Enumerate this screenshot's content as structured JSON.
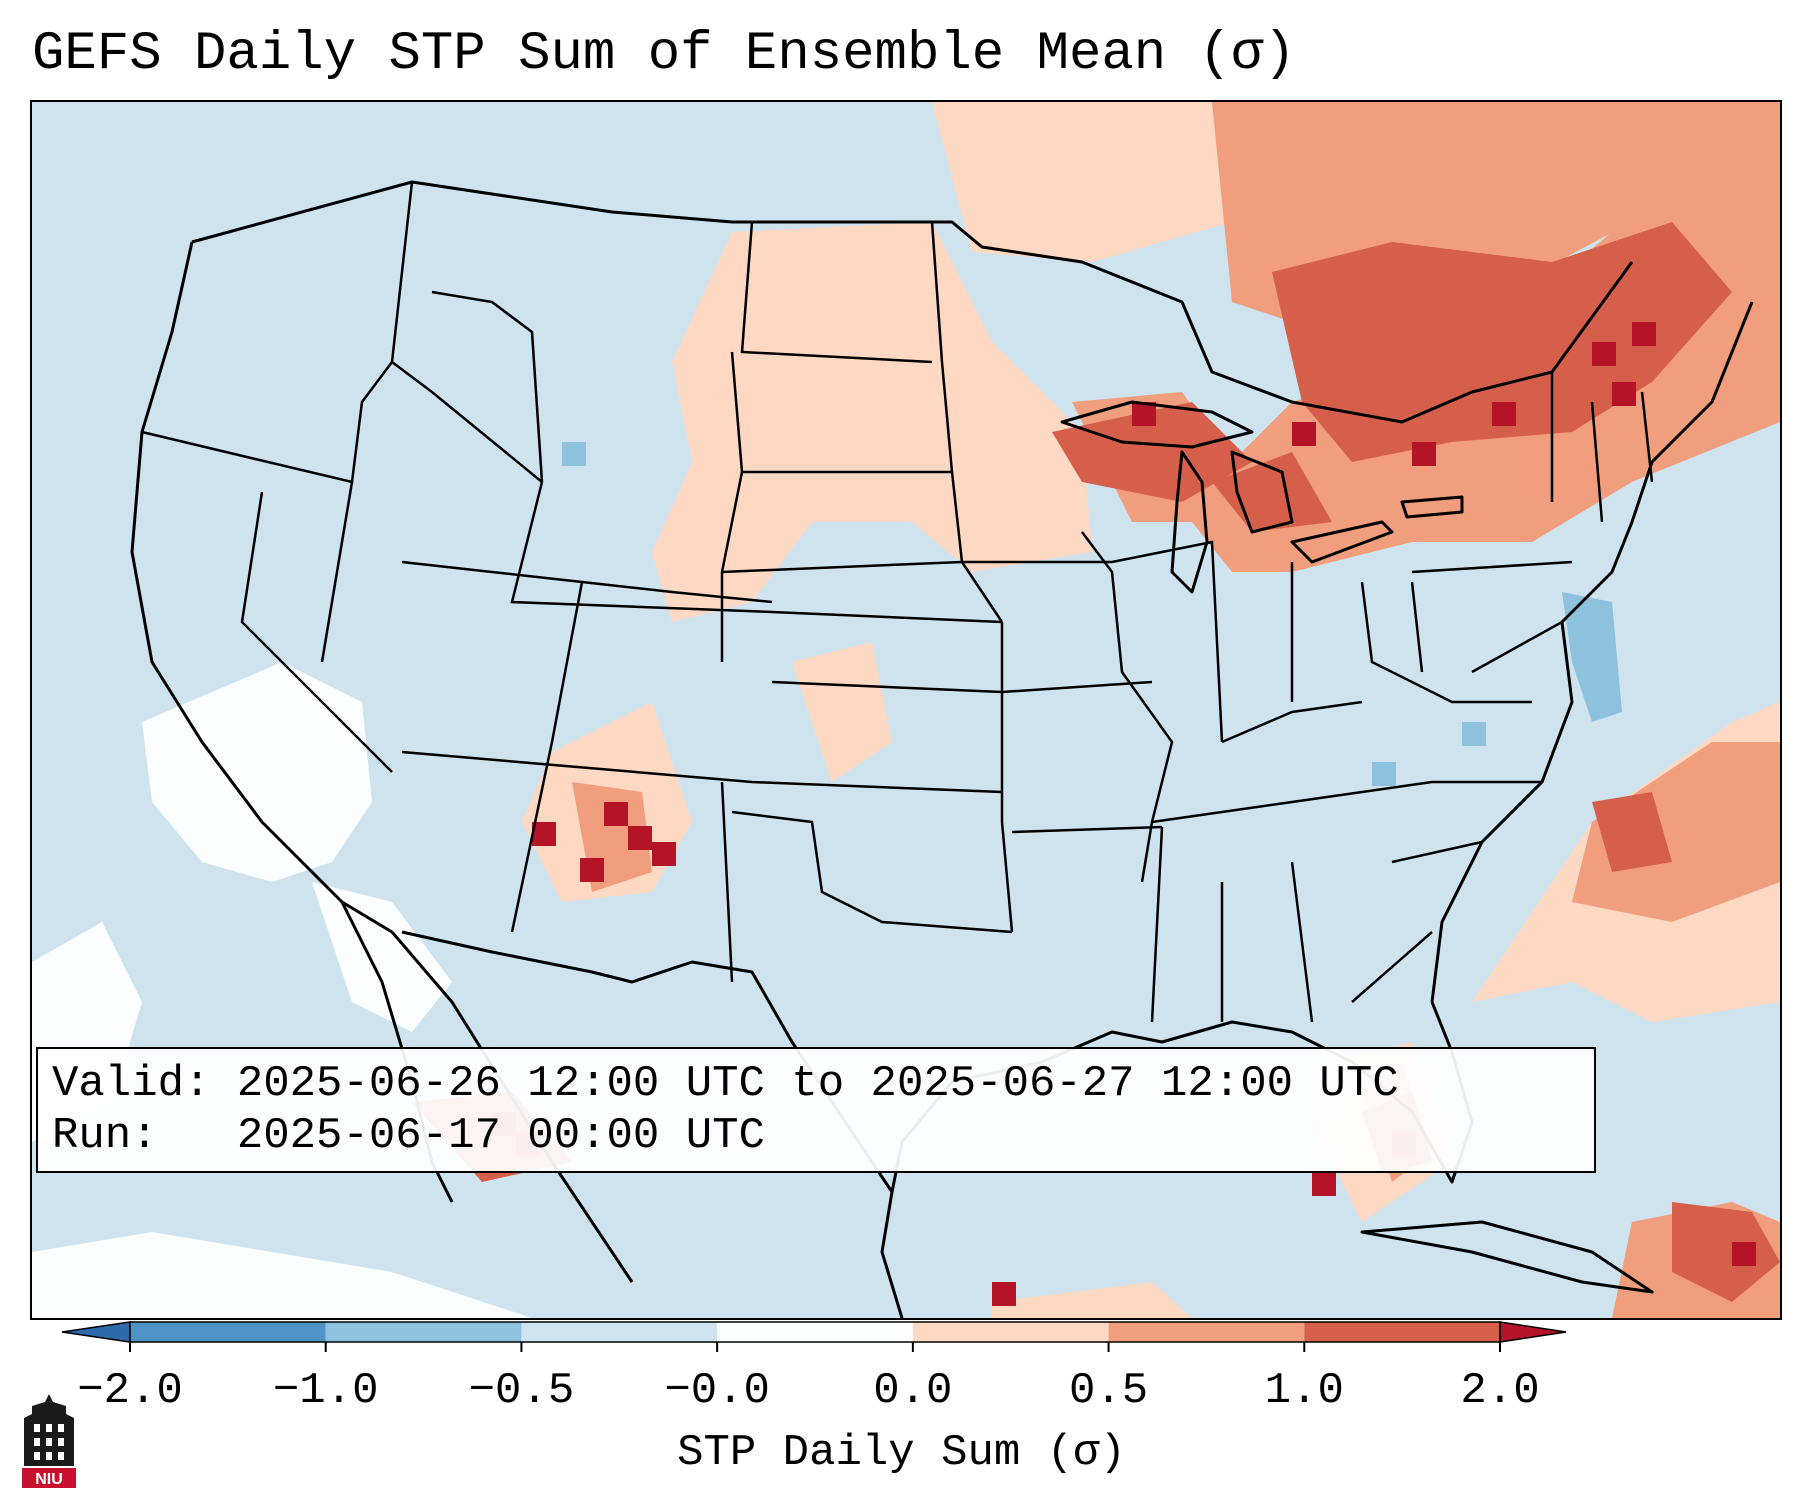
{
  "title": "GEFS Daily STP Sum of Ensemble Mean (σ)",
  "info": {
    "valid_label": "Valid:",
    "valid_value": "2025-06-26 12:00 UTC to 2025-06-27 12:00 UTC",
    "run_label": "Run:",
    "run_value": "2025-06-17 00:00 UTC"
  },
  "colorbar": {
    "label": "STP Daily Sum (σ)",
    "ticks": [
      "−2.0",
      "−1.0",
      "−0.5",
      "−0.0",
      "0.0",
      "0.5",
      "1.0",
      "2.0"
    ],
    "bin_colors": [
      "#4f94c6",
      "#8ec1de",
      "#cfe3ef",
      "#fbfdfe",
      "#fdd8c2",
      "#f09e7d",
      "#d65f4c"
    ],
    "under_color": "#2c6aab",
    "over_color": "#b51328"
  },
  "map": {
    "region": "CONUS, Mexico and Gulf of Mexico",
    "ocean_color": "#cfe3ef",
    "border_color": "#000000",
    "highlight_regions": [
      {
        "name": "Upper Midwest / Great Lakes",
        "level": "0.5 to 2.0",
        "color": "#d65f4c"
      },
      {
        "name": "Ontario / Quebec / Northeast",
        "level": "1.0 to 2.0+",
        "color": "#b51328"
      },
      {
        "name": "Northern and Central Plains",
        "level": "0.0 to 0.5",
        "color": "#fdd8c2"
      },
      {
        "name": "New Mexico / Colorado",
        "level": "1.0 to 2.0+",
        "color": "#b51328"
      },
      {
        "name": "Western Atlantic",
        "level": "0.0 to 1.0",
        "color": "#f09e7d"
      },
      {
        "name": "Florida / eastern Gulf",
        "level": "0.5 to 2.0+",
        "color": "#d65f4c"
      },
      {
        "name": "Northwest Mexico",
        "level": "1.0 to 2.0+",
        "color": "#b51328"
      },
      {
        "name": "Mid-Atlantic coast",
        "level": "−1.0 to −0.5",
        "color": "#8ec1de"
      },
      {
        "name": "Southwest / Pacific coast",
        "level": "−0.5 to 0.0",
        "color": "#fbfdfe"
      }
    ]
  },
  "logo": {
    "text": "NIU"
  }
}
